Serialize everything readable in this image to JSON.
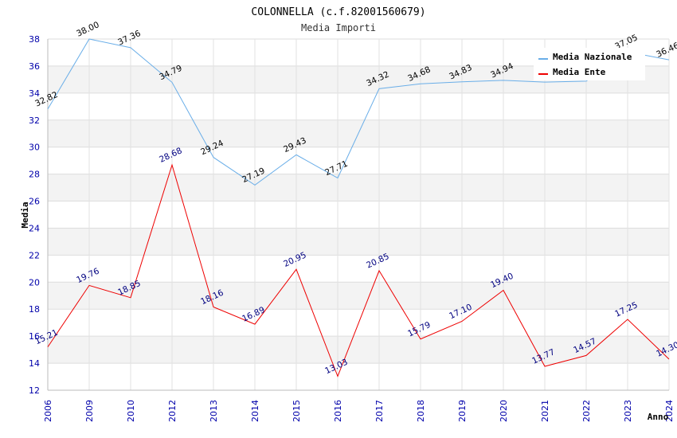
{
  "chart_data": {
    "type": "line",
    "title": "COLONNELLA (c.f.82001560679)",
    "subtitle": "Media Importi",
    "xlabel": "Anno",
    "ylabel": "Media",
    "ylim": [
      12,
      38
    ],
    "yticks": [
      12,
      14,
      16,
      18,
      20,
      22,
      24,
      26,
      28,
      30,
      32,
      34,
      36,
      38
    ],
    "categories": [
      "2006",
      "2009",
      "2010",
      "2012",
      "2013",
      "2014",
      "2015",
      "2016",
      "2017",
      "2018",
      "2019",
      "2020",
      "2021",
      "2022",
      "2023",
      "2024"
    ],
    "series": [
      {
        "name": "Media Nazionale",
        "color": "#6aaee8",
        "values": [
          32.82,
          38.0,
          37.36,
          34.79,
          29.24,
          27.19,
          29.43,
          27.71,
          34.32,
          34.68,
          34.83,
          34.94,
          34.81,
          34.88,
          37.05,
          36.46
        ],
        "labels": [
          "32.82",
          "38.00",
          "37.36",
          "34.79",
          "29.24",
          "27.19",
          "29.43",
          "27.71",
          "34.32",
          "34.68",
          "34.83",
          "34.94",
          "",
          "",
          "37.05",
          "36.46"
        ]
      },
      {
        "name": "Media Ente",
        "color": "#ee0000",
        "values": [
          15.21,
          19.76,
          18.85,
          28.68,
          18.16,
          16.89,
          20.95,
          13.03,
          20.85,
          15.79,
          17.1,
          19.4,
          13.77,
          14.57,
          17.25,
          14.3
        ],
        "labels": [
          "15.21",
          "19.76",
          "18.85",
          "28.68",
          "18.16",
          "16.89",
          "20.95",
          "13.03",
          "20.85",
          "15.79",
          "17.10",
          "19.40",
          "13.77",
          "14.57",
          "17.25",
          "14.30"
        ]
      }
    ],
    "legend": "top-right",
    "grid": true
  }
}
